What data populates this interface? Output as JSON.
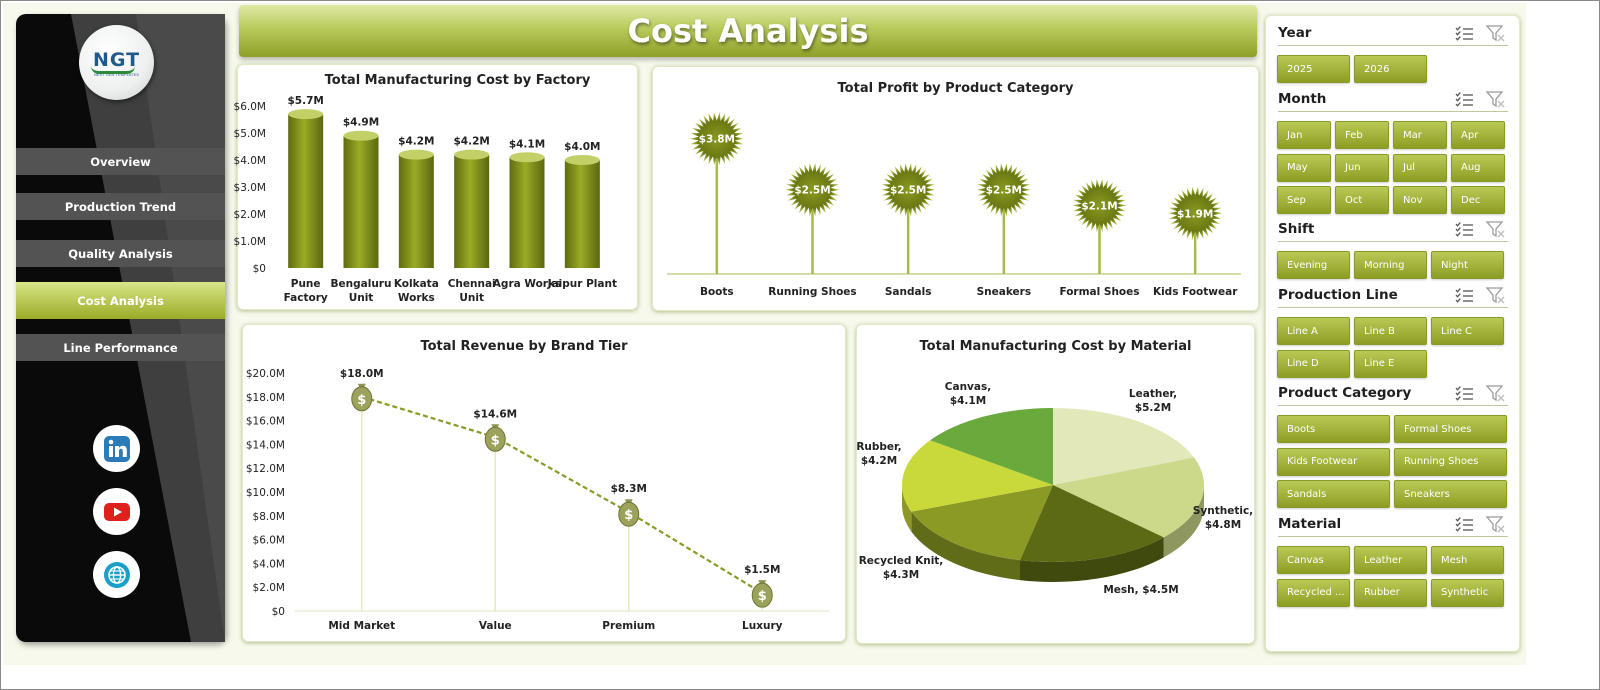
{
  "app": {
    "title": "Cost Analysis",
    "logo_text": "NGT",
    "logo_tagline": "NEXT GEN TEMPLATES"
  },
  "colors": {
    "accent": "#9aab25",
    "accent_dark": "#6f7a12",
    "accent_light": "#d9e68a",
    "sidebar_bg": "#0a0a0a",
    "nav_bg": "#535353"
  },
  "nav": {
    "items": [
      {
        "label": "Overview",
        "active": false
      },
      {
        "label": "Production Trend",
        "active": false
      },
      {
        "label": "Quality Analysis",
        "active": false
      },
      {
        "label": "Cost Analysis",
        "active": true
      },
      {
        "label": "Line Performance",
        "active": false
      }
    ]
  },
  "social": [
    {
      "icon": "linkedin-icon"
    },
    {
      "icon": "youtube-icon"
    },
    {
      "icon": "globe-icon"
    }
  ],
  "charts": {
    "factory": {
      "title": "Total Manufacturing  Cost by Factory"
    },
    "profit": {
      "title": "Total Profit by Product Category"
    },
    "revenue": {
      "title": "Total Revenue  by Brand Tier"
    },
    "material": {
      "title": "Total Manufacturing Cost by Material"
    }
  },
  "chart_data": [
    {
      "id": "factory",
      "type": "bar",
      "title": "Total Manufacturing  Cost by Factory",
      "categories": [
        "Pune Factory",
        "Bengaluru Unit",
        "Kolkata Works",
        "Chennai Unit",
        "Agra Works",
        "Jaipur Plant"
      ],
      "values": [
        5.7,
        4.9,
        4.2,
        4.2,
        4.1,
        4.0
      ],
      "data_labels": [
        "$5.7M",
        "$4.9M",
        "$4.2M",
        "$4.2M",
        "$4.1M",
        "$4.0M"
      ],
      "y_ticks": [
        "$0",
        "$1.0M",
        "$2.0M",
        "$3.0M",
        "$4.0M",
        "$5.0M",
        "$6.0M"
      ],
      "ylim": [
        0,
        6
      ]
    },
    {
      "id": "profit",
      "type": "bar",
      "title": "Total Profit by Product Category",
      "categories": [
        "Boots",
        "Running Shoes",
        "Sandals",
        "Sneakers",
        "Formal Shoes",
        "Kids Footwear"
      ],
      "values": [
        3.8,
        2.5,
        2.5,
        2.5,
        2.1,
        1.9
      ],
      "data_labels": [
        "$3.8M",
        "$2.5M",
        "$2.5M",
        "$2.5M",
        "$2.1M",
        "$1.9M"
      ],
      "ylim": [
        0,
        4.3
      ]
    },
    {
      "id": "revenue",
      "type": "line",
      "title": "Total Revenue  by Brand Tier",
      "categories": [
        "Mid Market",
        "Value",
        "Premium",
        "Luxury"
      ],
      "values": [
        18.0,
        14.6,
        8.3,
        1.5
      ],
      "data_labels": [
        "$18.0M",
        "$14.6M",
        "$8.3M",
        "$1.5M"
      ],
      "y_ticks": [
        "$0",
        "$2.0M",
        "$4.0M",
        "$6.0M",
        "$8.0M",
        "$10.0M",
        "$12.0M",
        "$14.0M",
        "$16.0M",
        "$18.0M",
        "$20.0M"
      ],
      "ylim": [
        0,
        20
      ]
    },
    {
      "id": "material",
      "type": "pie",
      "title": "Total Manufacturing Cost by Material",
      "categories": [
        "Leather",
        "Synthetic",
        "Mesh",
        "Recycled Knit",
        "Rubber",
        "Canvas"
      ],
      "values": [
        5.2,
        4.8,
        4.5,
        4.3,
        4.2,
        4.1
      ],
      "data_labels": [
        [
          "Leather,",
          "$5.2M"
        ],
        [
          "Synthetic,",
          "$4.8M"
        ],
        [
          "Mesh, $4.5M"
        ],
        [
          "Recycled Knit,",
          "$4.3M"
        ],
        [
          "Rubber,",
          "$4.2M"
        ],
        [
          "Canvas,",
          "$4.1M"
        ]
      ],
      "colors": [
        "#e3e8ba",
        "#ccd88a",
        "#5d6a14",
        "#8a9a24",
        "#c9d93a",
        "#6aa93c"
      ]
    }
  ],
  "slicers": [
    {
      "key": "year",
      "title": "Year",
      "cols": 3,
      "chip_width": 73,
      "items": [
        "2025",
        "2026"
      ]
    },
    {
      "key": "month",
      "title": "Month",
      "cols": 4,
      "chip_width": 54,
      "items": [
        "Jan",
        "Feb",
        "Mar",
        "Apr",
        "May",
        "Jun",
        "Jul",
        "Aug",
        "Sep",
        "Oct",
        "Nov",
        "Dec"
      ]
    },
    {
      "key": "shift",
      "title": "Shift",
      "cols": 3,
      "chip_width": 73,
      "items": [
        "Evening",
        "Morning",
        "Night"
      ]
    },
    {
      "key": "production-line",
      "title": "Production Line",
      "cols": 3,
      "chip_width": 73,
      "items": [
        "Line A",
        "Line B",
        "Line C",
        "Line D",
        "Line E"
      ]
    },
    {
      "key": "product-category",
      "title": "Product Category",
      "cols": 2,
      "chip_width": 113,
      "items": [
        "Boots",
        "Formal Shoes",
        "Kids Footwear",
        "Running Shoes",
        "Sandals",
        "Sneakers"
      ]
    },
    {
      "key": "material",
      "title": "Material",
      "cols": 3,
      "chip_width": 73,
      "items": [
        "Canvas",
        "Leather",
        "Mesh",
        "Recycled ...",
        "Rubber",
        "Synthetic"
      ]
    }
  ]
}
